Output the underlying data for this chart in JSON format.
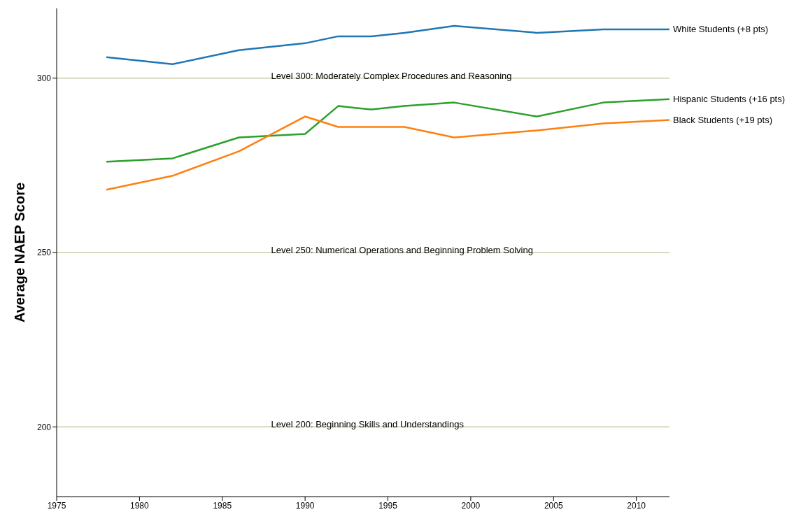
{
  "chart_data": {
    "type": "line",
    "ylabel": "Average NAEP Score",
    "x": [
      1978,
      1982,
      1986,
      1990,
      1992,
      1994,
      1996,
      1999,
      2004,
      2008,
      2012
    ],
    "series": [
      {
        "name": "White Students (+8 pts)",
        "color": "#1f77b4",
        "values": [
          306,
          304,
          308,
          310,
          312,
          312,
          313,
          315,
          313,
          314,
          314
        ]
      },
      {
        "name": "Hispanic Students (+16 pts)",
        "color": "#2ca02c",
        "values": [
          276,
          277,
          283,
          284,
          292,
          291,
          292,
          293,
          289,
          293,
          294
        ]
      },
      {
        "name": "Black Students (+19 pts)",
        "color": "#ff7f0e",
        "values": [
          268,
          272,
          279,
          289,
          286,
          286,
          286,
          283,
          285,
          287,
          288
        ]
      }
    ],
    "xlim": [
      1975,
      2012
    ],
    "xticks": [
      1975,
      1980,
      1985,
      1990,
      1995,
      2000,
      2005,
      2010
    ],
    "ylim": [
      180,
      320
    ],
    "yticks": [
      200,
      250,
      300
    ],
    "ref_lines": [
      {
        "axis": "y",
        "value": 300,
        "label": "Level 300: Moderately Complex Procedures and Reasoning",
        "color": "#cccbad"
      },
      {
        "axis": "y",
        "value": 250,
        "label": "Level 250: Numerical Operations and Beginning Problem Solving",
        "color": "#cccbad"
      },
      {
        "axis": "y",
        "value": 200,
        "label": "Level 200: Beginning Skills and Understandings",
        "color": "#cccbad"
      }
    ],
    "grid": false,
    "legend": false,
    "marker": "none",
    "line_style": "solid"
  }
}
